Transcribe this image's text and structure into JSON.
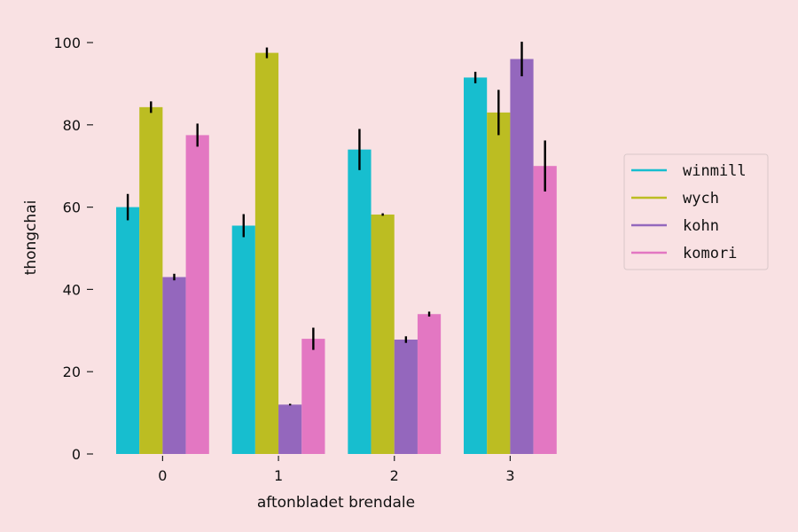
{
  "chart_data": {
    "type": "bar",
    "xlabel": "aftonbladet brendale",
    "ylabel": "thongchai",
    "categories": [
      "0",
      "1",
      "2",
      "3"
    ],
    "ylim": [
      0,
      105
    ],
    "yticks": [
      0,
      20,
      40,
      60,
      80,
      100
    ],
    "grid": false,
    "legend_position": "right",
    "series": [
      {
        "name": "winmill",
        "color": "#17becf",
        "values": [
          60,
          55.5,
          74,
          91.5
        ],
        "err": [
          3.2,
          2.8,
          5,
          1.4
        ]
      },
      {
        "name": "wych",
        "color": "#bcbd22",
        "values": [
          84.3,
          97.5,
          58.2,
          83
        ],
        "err": [
          1.4,
          1.3,
          0.3,
          5.5
        ]
      },
      {
        "name": "kohn",
        "color": "#9467bd",
        "values": [
          43,
          12,
          27.8,
          96
        ],
        "err": [
          0.8,
          0.2,
          0.8,
          4.2
        ]
      },
      {
        "name": "komori",
        "color": "#e377c2",
        "values": [
          77.5,
          28,
          34,
          70
        ],
        "err": [
          2.8,
          2.7,
          0.6,
          6.2
        ]
      }
    ]
  }
}
